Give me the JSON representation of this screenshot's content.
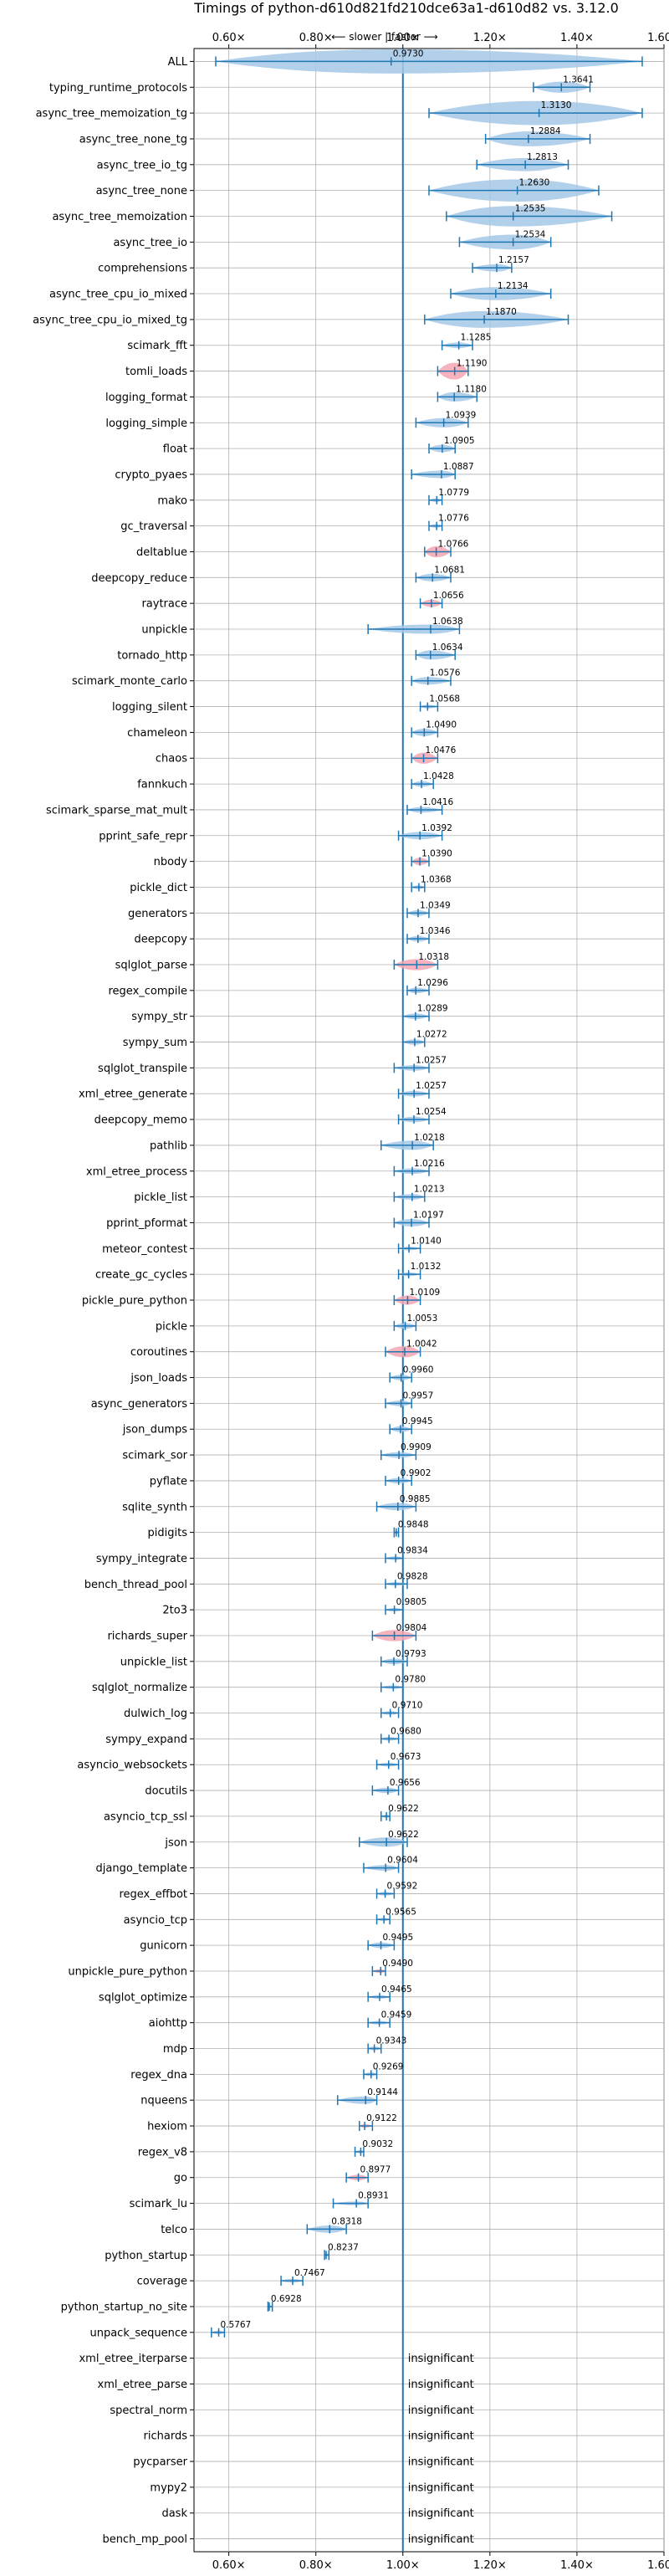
{
  "chart_data": {
    "type": "violin",
    "title": "Timings of python-d610d821fd210dce63a1-d610d82 vs. 3.12.0",
    "subtitle": "⟵ slower | faster ⟶",
    "xlim": [
      0.52,
      1.6
    ],
    "xticks": [
      0.6,
      0.8,
      1.0,
      1.2,
      1.4,
      1.6
    ],
    "xtick_labels": [
      "0.60×",
      "0.80×",
      "1.00×",
      "1.20×",
      "1.40×",
      "1.60×"
    ],
    "grid": true,
    "reference_line": 1.0,
    "insignificant_text": "insignificant",
    "colors": {
      "violin": "#a6c8e6",
      "highlight": "#f4a6b2",
      "line": "#1f77b4",
      "grid": "#b0b0b0"
    },
    "benchmarks": [
      {
        "name": "ALL",
        "median": 0.973,
        "label": "0.9730",
        "min": 0.57,
        "max": 1.55,
        "width": 0.13
      },
      {
        "name": "typing_runtime_protocols",
        "median": 1.3641,
        "label": "1.3641",
        "min": 1.3,
        "max": 1.43,
        "width": 0.06
      },
      {
        "name": "async_tree_memoization_tg",
        "median": 1.313,
        "label": "1.3130",
        "min": 1.06,
        "max": 1.55,
        "width": 0.13
      },
      {
        "name": "async_tree_none_tg",
        "median": 1.2884,
        "label": "1.2884",
        "min": 1.19,
        "max": 1.43,
        "width": 0.08
      },
      {
        "name": "async_tree_io_tg",
        "median": 1.2813,
        "label": "1.2813",
        "min": 1.17,
        "max": 1.38,
        "width": 0.07
      },
      {
        "name": "async_tree_none",
        "median": 1.263,
        "label": "1.2630",
        "min": 1.06,
        "max": 1.45,
        "width": 0.12
      },
      {
        "name": "async_tree_memoization",
        "median": 1.2535,
        "label": "1.2535",
        "min": 1.1,
        "max": 1.48,
        "width": 0.11
      },
      {
        "name": "async_tree_io",
        "median": 1.2534,
        "label": "1.2534",
        "min": 1.13,
        "max": 1.34,
        "width": 0.08
      },
      {
        "name": "comprehensions",
        "median": 1.2157,
        "label": "1.2157",
        "min": 1.16,
        "max": 1.25,
        "width": 0.04
      },
      {
        "name": "async_tree_cpu_io_mixed",
        "median": 1.2134,
        "label": "1.2134",
        "min": 1.11,
        "max": 1.34,
        "width": 0.07
      },
      {
        "name": "async_tree_cpu_io_mixed_tg",
        "median": 1.187,
        "label": "1.1870",
        "min": 1.05,
        "max": 1.38,
        "width": 0.09
      },
      {
        "name": "scimark_fft",
        "median": 1.1285,
        "label": "1.1285",
        "min": 1.09,
        "max": 1.16,
        "width": 0.03
      },
      {
        "name": "tomli_loads",
        "median": 1.119,
        "label": "1.1190",
        "min": 1.08,
        "max": 1.15,
        "width": 0.09,
        "highlight": true
      },
      {
        "name": "logging_format",
        "median": 1.118,
        "label": "1.1180",
        "min": 1.08,
        "max": 1.17,
        "width": 0.05
      },
      {
        "name": "logging_simple",
        "median": 1.0939,
        "label": "1.0939",
        "min": 1.03,
        "max": 1.15,
        "width": 0.05
      },
      {
        "name": "float",
        "median": 1.0905,
        "label": "1.0905",
        "min": 1.06,
        "max": 1.12,
        "width": 0.04
      },
      {
        "name": "crypto_pyaes",
        "median": 1.0887,
        "label": "1.0887",
        "min": 1.02,
        "max": 1.12,
        "width": 0.04
      },
      {
        "name": "mako",
        "median": 1.0779,
        "label": "1.0779",
        "min": 1.06,
        "max": 1.09,
        "width": 0.02
      },
      {
        "name": "gc_traversal",
        "median": 1.0776,
        "label": "1.0776",
        "min": 1.06,
        "max": 1.09,
        "width": 0.02
      },
      {
        "name": "deltablue",
        "median": 1.0766,
        "label": "1.0766",
        "min": 1.05,
        "max": 1.11,
        "width": 0.06,
        "highlight": true
      },
      {
        "name": "deepcopy_reduce",
        "median": 1.0681,
        "label": "1.0681",
        "min": 1.03,
        "max": 1.11,
        "width": 0.04
      },
      {
        "name": "raytrace",
        "median": 1.0656,
        "label": "1.0656",
        "min": 1.04,
        "max": 1.09,
        "width": 0.04,
        "highlight": true
      },
      {
        "name": "unpickle",
        "median": 1.0638,
        "label": "1.0638",
        "min": 0.92,
        "max": 1.13,
        "width": 0.05
      },
      {
        "name": "tornado_http",
        "median": 1.0634,
        "label": "1.0634",
        "min": 1.03,
        "max": 1.12,
        "width": 0.05
      },
      {
        "name": "scimark_monte_carlo",
        "median": 1.0576,
        "label": "1.0576",
        "min": 1.02,
        "max": 1.11,
        "width": 0.04
      },
      {
        "name": "logging_silent",
        "median": 1.0568,
        "label": "1.0568",
        "min": 1.04,
        "max": 1.08,
        "width": 0.02
      },
      {
        "name": "chameleon",
        "median": 1.049,
        "label": "1.0490",
        "min": 1.02,
        "max": 1.08,
        "width": 0.04
      },
      {
        "name": "chaos",
        "median": 1.0476,
        "label": "1.0476",
        "min": 1.02,
        "max": 1.08,
        "width": 0.06,
        "highlight": true
      },
      {
        "name": "fannkuch",
        "median": 1.0428,
        "label": "1.0428",
        "min": 1.02,
        "max": 1.07,
        "width": 0.03
      },
      {
        "name": "scimark_sparse_mat_mult",
        "median": 1.0416,
        "label": "1.0416",
        "min": 1.01,
        "max": 1.09,
        "width": 0.03
      },
      {
        "name": "pprint_safe_repr",
        "median": 1.0392,
        "label": "1.0392",
        "min": 0.99,
        "max": 1.09,
        "width": 0.04
      },
      {
        "name": "nbody",
        "median": 1.039,
        "label": "1.0390",
        "min": 1.02,
        "max": 1.06,
        "width": 0.04,
        "highlight": true
      },
      {
        "name": "pickle_dict",
        "median": 1.0368,
        "label": "1.0368",
        "min": 1.02,
        "max": 1.05,
        "width": 0.02
      },
      {
        "name": "generators",
        "median": 1.0349,
        "label": "1.0349",
        "min": 1.01,
        "max": 1.06,
        "width": 0.03
      },
      {
        "name": "deepcopy",
        "median": 1.0346,
        "label": "1.0346",
        "min": 1.01,
        "max": 1.06,
        "width": 0.03
      },
      {
        "name": "sqlglot_parse",
        "median": 1.0318,
        "label": "1.0318",
        "min": 0.98,
        "max": 1.08,
        "width": 0.06,
        "highlight": true
      },
      {
        "name": "regex_compile",
        "median": 1.0296,
        "label": "1.0296",
        "min": 1.01,
        "max": 1.06,
        "width": 0.03
      },
      {
        "name": "sympy_str",
        "median": 1.0289,
        "label": "1.0289",
        "min": 1.0,
        "max": 1.06,
        "width": 0.03
      },
      {
        "name": "sympy_sum",
        "median": 1.0272,
        "label": "1.0272",
        "min": 1.0,
        "max": 1.05,
        "width": 0.03
      },
      {
        "name": "sqlglot_transpile",
        "median": 1.0257,
        "label": "1.0257",
        "min": 0.98,
        "max": 1.06,
        "width": 0.03
      },
      {
        "name": "xml_etree_generate",
        "median": 1.0257,
        "label": "1.0257",
        "min": 0.99,
        "max": 1.06,
        "width": 0.03
      },
      {
        "name": "deepcopy_memo",
        "median": 1.0254,
        "label": "1.0254",
        "min": 0.99,
        "max": 1.06,
        "width": 0.03
      },
      {
        "name": "pathlib",
        "median": 1.0218,
        "label": "1.0218",
        "min": 0.95,
        "max": 1.07,
        "width": 0.05
      },
      {
        "name": "xml_etree_process",
        "median": 1.0216,
        "label": "1.0216",
        "min": 0.98,
        "max": 1.06,
        "width": 0.03
      },
      {
        "name": "pickle_list",
        "median": 1.0213,
        "label": "1.0213",
        "min": 0.98,
        "max": 1.05,
        "width": 0.03
      },
      {
        "name": "pprint_pformat",
        "median": 1.0197,
        "label": "1.0197",
        "min": 0.98,
        "max": 1.06,
        "width": 0.04
      },
      {
        "name": "meteor_contest",
        "median": 1.014,
        "label": "1.0140",
        "min": 0.99,
        "max": 1.04,
        "width": 0.02
      },
      {
        "name": "create_gc_cycles",
        "median": 1.0132,
        "label": "1.0132",
        "min": 0.99,
        "max": 1.04,
        "width": 0.02
      },
      {
        "name": "pickle_pure_python",
        "median": 1.0109,
        "label": "1.0109",
        "min": 0.98,
        "max": 1.04,
        "width": 0.05,
        "highlight": true
      },
      {
        "name": "pickle",
        "median": 1.0053,
        "label": "1.0053",
        "min": 0.98,
        "max": 1.03,
        "width": 0.03
      },
      {
        "name": "coroutines",
        "median": 1.0042,
        "label": "1.0042",
        "min": 0.96,
        "max": 1.04,
        "width": 0.06,
        "highlight": true
      },
      {
        "name": "json_loads",
        "median": 0.996,
        "label": "0.9960",
        "min": 0.97,
        "max": 1.02,
        "width": 0.03
      },
      {
        "name": "async_generators",
        "median": 0.9957,
        "label": "0.9957",
        "min": 0.96,
        "max": 1.02,
        "width": 0.03
      },
      {
        "name": "json_dumps",
        "median": 0.9945,
        "label": "0.9945",
        "min": 0.97,
        "max": 1.02,
        "width": 0.03
      },
      {
        "name": "scimark_sor",
        "median": 0.9909,
        "label": "0.9909",
        "min": 0.95,
        "max": 1.03,
        "width": 0.03
      },
      {
        "name": "pyflate",
        "median": 0.9902,
        "label": "0.9902",
        "min": 0.96,
        "max": 1.02,
        "width": 0.03
      },
      {
        "name": "sqlite_synth",
        "median": 0.9885,
        "label": "0.9885",
        "min": 0.94,
        "max": 1.03,
        "width": 0.04
      },
      {
        "name": "pidigits",
        "median": 0.9848,
        "label": "0.9848",
        "min": 0.98,
        "max": 0.99,
        "width": 0.01
      },
      {
        "name": "sympy_integrate",
        "median": 0.9834,
        "label": "0.9834",
        "min": 0.96,
        "max": 1.0,
        "width": 0.02
      },
      {
        "name": "bench_thread_pool",
        "median": 0.9828,
        "label": "0.9828",
        "min": 0.96,
        "max": 1.01,
        "width": 0.02
      },
      {
        "name": "2to3",
        "median": 0.9805,
        "label": "0.9805",
        "min": 0.96,
        "max": 1.0,
        "width": 0.02
      },
      {
        "name": "richards_super",
        "median": 0.9804,
        "label": "0.9804",
        "min": 0.93,
        "max": 1.03,
        "width": 0.06,
        "highlight": true
      },
      {
        "name": "unpickle_list",
        "median": 0.9793,
        "label": "0.9793",
        "min": 0.95,
        "max": 1.01,
        "width": 0.03
      },
      {
        "name": "sqlglot_normalize",
        "median": 0.978,
        "label": "0.9780",
        "min": 0.95,
        "max": 1.0,
        "width": 0.02
      },
      {
        "name": "dulwich_log",
        "median": 0.971,
        "label": "0.9710",
        "min": 0.95,
        "max": 0.99,
        "width": 0.02
      },
      {
        "name": "sympy_expand",
        "median": 0.968,
        "label": "0.9680",
        "min": 0.95,
        "max": 0.99,
        "width": 0.02
      },
      {
        "name": "asyncio_websockets",
        "median": 0.9673,
        "label": "0.9673",
        "min": 0.94,
        "max": 0.99,
        "width": 0.02
      },
      {
        "name": "docutils",
        "median": 0.9656,
        "label": "0.9656",
        "min": 0.93,
        "max": 0.99,
        "width": 0.03
      },
      {
        "name": "asyncio_tcp_ssl",
        "median": 0.9622,
        "label": "0.9622",
        "min": 0.95,
        "max": 0.97,
        "width": 0.01
      },
      {
        "name": "json",
        "median": 0.9622,
        "label": "0.9622",
        "min": 0.9,
        "max": 1.01,
        "width": 0.05
      },
      {
        "name": "django_template",
        "median": 0.9604,
        "label": "0.9604",
        "min": 0.91,
        "max": 0.99,
        "width": 0.03
      },
      {
        "name": "regex_effbot",
        "median": 0.9592,
        "label": "0.9592",
        "min": 0.94,
        "max": 0.98,
        "width": 0.02
      },
      {
        "name": "asyncio_tcp",
        "median": 0.9565,
        "label": "0.9565",
        "min": 0.94,
        "max": 0.97,
        "width": 0.01
      },
      {
        "name": "gunicorn",
        "median": 0.9495,
        "label": "0.9495",
        "min": 0.92,
        "max": 0.98,
        "width": 0.03
      },
      {
        "name": "unpickle_pure_python",
        "median": 0.949,
        "label": "0.9490",
        "min": 0.93,
        "max": 0.96,
        "width": 0.02,
        "highlight": true
      },
      {
        "name": "sqlglot_optimize",
        "median": 0.9465,
        "label": "0.9465",
        "min": 0.92,
        "max": 0.97,
        "width": 0.02
      },
      {
        "name": "aiohttp",
        "median": 0.9459,
        "label": "0.9459",
        "min": 0.92,
        "max": 0.97,
        "width": 0.02
      },
      {
        "name": "mdp",
        "median": 0.9343,
        "label": "0.9343",
        "min": 0.92,
        "max": 0.95,
        "width": 0.02
      },
      {
        "name": "regex_dna",
        "median": 0.9269,
        "label": "0.9269",
        "min": 0.91,
        "max": 0.94,
        "width": 0.02
      },
      {
        "name": "nqueens",
        "median": 0.9144,
        "label": "0.9144",
        "min": 0.85,
        "max": 0.94,
        "width": 0.04
      },
      {
        "name": "hexiom",
        "median": 0.9122,
        "label": "0.9122",
        "min": 0.9,
        "max": 0.93,
        "width": 0.02,
        "highlight": true
      },
      {
        "name": "regex_v8",
        "median": 0.9032,
        "label": "0.9032",
        "min": 0.89,
        "max": 0.91,
        "width": 0.01
      },
      {
        "name": "go",
        "median": 0.8977,
        "label": "0.8977",
        "min": 0.87,
        "max": 0.92,
        "width": 0.03,
        "highlight": true
      },
      {
        "name": "scimark_lu",
        "median": 0.8931,
        "label": "0.8931",
        "min": 0.84,
        "max": 0.92,
        "width": 0.02
      },
      {
        "name": "telco",
        "median": 0.8318,
        "label": "0.8318",
        "min": 0.78,
        "max": 0.87,
        "width": 0.04
      },
      {
        "name": "python_startup",
        "median": 0.8237,
        "label": "0.8237",
        "min": 0.82,
        "max": 0.83,
        "width": 0.01
      },
      {
        "name": "coverage",
        "median": 0.7467,
        "label": "0.7467",
        "min": 0.72,
        "max": 0.77,
        "width": 0.02
      },
      {
        "name": "python_startup_no_site",
        "median": 0.6928,
        "label": "0.6928",
        "min": 0.69,
        "max": 0.7,
        "width": 0.01
      },
      {
        "name": "unpack_sequence",
        "median": 0.5767,
        "label": "0.5767",
        "min": 0.56,
        "max": 0.59,
        "width": 0.02
      },
      {
        "name": "xml_etree_iterparse",
        "insignificant": true
      },
      {
        "name": "xml_etree_parse",
        "insignificant": true
      },
      {
        "name": "spectral_norm",
        "insignificant": true
      },
      {
        "name": "richards",
        "insignificant": true
      },
      {
        "name": "pycparser",
        "insignificant": true
      },
      {
        "name": "mypy2",
        "insignificant": true
      },
      {
        "name": "dask",
        "insignificant": true
      },
      {
        "name": "bench_mp_pool",
        "insignificant": true
      }
    ]
  }
}
